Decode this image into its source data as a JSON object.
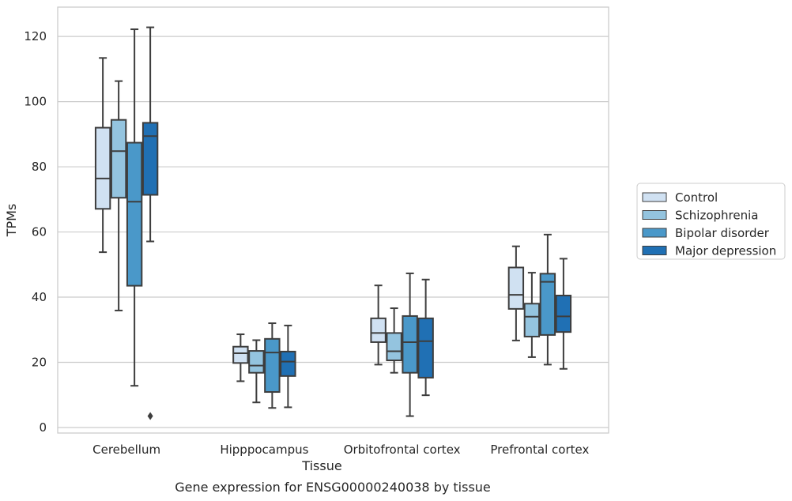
{
  "caption": "Gene expression for ENSG00000240038 by tissue",
  "chart_data": {
    "type": "box",
    "xlabel": "Tissue",
    "ylabel": "TPMs",
    "ylim": [
      -1.7,
      129
    ],
    "yticks": [
      0,
      20,
      40,
      60,
      80,
      100,
      120
    ],
    "grid": "horizontal",
    "legend_position": "right",
    "categories": [
      "Cerebellum",
      "Hipppocampus",
      "Orbitofrontal cortex",
      "Prefrontal cortex"
    ],
    "series": [
      {
        "name": "Control",
        "color": "#d0e1f2",
        "boxes": [
          {
            "whislo": 53.8,
            "q1": 67.1,
            "med": 76.4,
            "q3": 92.0,
            "whishi": 113.4,
            "fliers": []
          },
          {
            "whislo": 14.2,
            "q1": 19.8,
            "med": 22.8,
            "q3": 24.8,
            "whishi": 28.6,
            "fliers": []
          },
          {
            "whislo": 19.3,
            "q1": 26.2,
            "med": 29.0,
            "q3": 33.5,
            "whishi": 43.6,
            "fliers": []
          },
          {
            "whislo": 26.7,
            "q1": 36.4,
            "med": 40.7,
            "q3": 49.1,
            "whishi": 55.6,
            "fliers": []
          }
        ]
      },
      {
        "name": "Schizophrenia",
        "color": "#94c4df",
        "boxes": [
          {
            "whislo": 35.9,
            "q1": 70.5,
            "med": 84.8,
            "q3": 94.4,
            "whishi": 106.3,
            "fliers": []
          },
          {
            "whislo": 7.7,
            "q1": 16.8,
            "med": 19.0,
            "q3": 23.5,
            "whishi": 26.8,
            "fliers": []
          },
          {
            "whislo": 16.8,
            "q1": 20.6,
            "med": 23.4,
            "q3": 29.0,
            "whishi": 36.6,
            "fliers": []
          },
          {
            "whislo": 21.6,
            "q1": 27.9,
            "med": 34.0,
            "q3": 38.0,
            "whishi": 47.5,
            "fliers": []
          }
        ]
      },
      {
        "name": "Bipolar disorder",
        "color": "#4a98c9",
        "boxes": [
          {
            "whislo": 12.8,
            "q1": 43.5,
            "med": 69.3,
            "q3": 87.4,
            "whishi": 122.2,
            "fliers": []
          },
          {
            "whislo": 6.0,
            "q1": 10.9,
            "med": 23.0,
            "q3": 27.2,
            "whishi": 32.0,
            "fliers": []
          },
          {
            "whislo": 3.5,
            "q1": 16.8,
            "med": 26.2,
            "q3": 34.2,
            "whishi": 47.3,
            "fliers": []
          },
          {
            "whislo": 19.3,
            "q1": 28.4,
            "med": 44.7,
            "q3": 47.2,
            "whishi": 59.2,
            "fliers": []
          }
        ]
      },
      {
        "name": "Major depression",
        "color": "#2070b4",
        "boxes": [
          {
            "whislo": 57.1,
            "q1": 71.4,
            "med": 89.4,
            "q3": 93.5,
            "whishi": 122.8,
            "fliers": [
              3.5
            ]
          },
          {
            "whislo": 6.2,
            "q1": 15.8,
            "med": 20.2,
            "q3": 23.3,
            "whishi": 31.3,
            "fliers": []
          },
          {
            "whislo": 9.9,
            "q1": 15.3,
            "med": 26.5,
            "q3": 33.5,
            "whishi": 45.4,
            "fliers": []
          },
          {
            "whislo": 18.0,
            "q1": 29.3,
            "med": 34.1,
            "q3": 40.5,
            "whishi": 51.8,
            "fliers": []
          }
        ]
      }
    ]
  }
}
